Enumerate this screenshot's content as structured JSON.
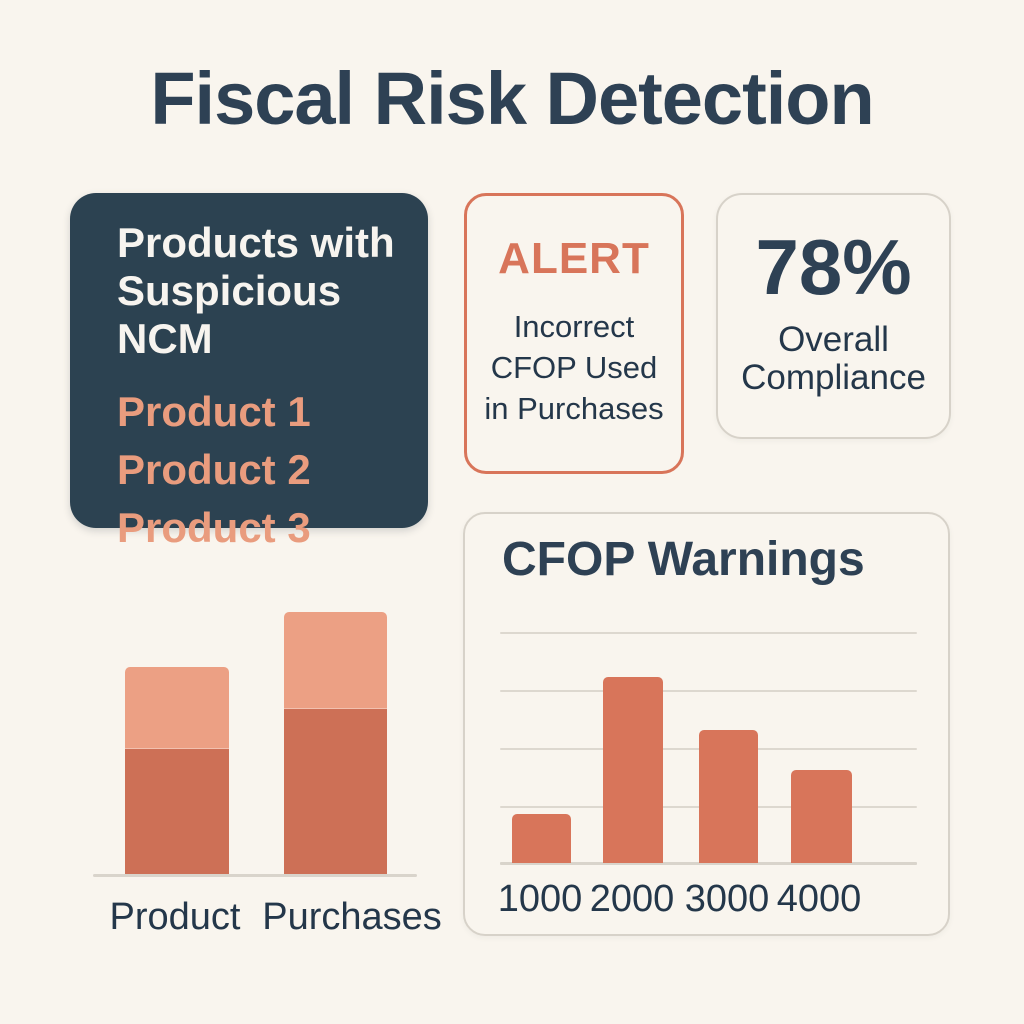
{
  "title": "Fiscal Risk Detection",
  "colors": {
    "background": "#f9f5ee",
    "heading_navy": "#2e4154",
    "body_navy": "#24374a",
    "dark_card_bg": "#2c4251",
    "dark_card_heading": "#f7f4ef",
    "salmon_list_text": "#e99c7e",
    "coral_accent": "#d8755a",
    "bar_light": "#eca084",
    "bar_dark": "#cd7056",
    "card_border": "#d7d2c9",
    "gridline": "#ddd8cf",
    "axis_line": "#d9d4cb"
  },
  "suspicious_ncm_card": {
    "heading": "Products with Suspicious NCM",
    "items": [
      "Product 1",
      "Product 2",
      "Product 3"
    ]
  },
  "alert_card": {
    "label": "ALERT",
    "message": "Incorrect CFOP Used in Purchases"
  },
  "compliance_card": {
    "value": "78%",
    "label": "Overall Compliance"
  },
  "chart_data": [
    {
      "type": "bar",
      "name": "suspicious-ncm-stacked-bars",
      "stacked": true,
      "categories": [
        "Product",
        "Purchases"
      ],
      "series": [
        {
          "name": "lower-dark-segment",
          "values": [
            125,
            165
          ]
        },
        {
          "name": "upper-light-segment",
          "values": [
            82,
            97
          ]
        }
      ],
      "unit": "relative height (chart shows no numeric axis; values estimated in screen px)",
      "grid": false,
      "legend": false
    },
    {
      "type": "bar",
      "name": "cfop-warnings",
      "title": "CFOP Warnings",
      "categories": [
        "1000",
        "2000",
        "3000",
        "4000"
      ],
      "values": [
        0.85,
        3.2,
        2.3,
        1.6
      ],
      "unit": "gridline units (y-axis unlabeled; 4 equal gridline intervals above baseline)",
      "ylim": [
        0,
        4
      ],
      "grid": true,
      "gridline_count": 4,
      "legend": false,
      "xlabel": "",
      "ylabel": ""
    }
  ]
}
